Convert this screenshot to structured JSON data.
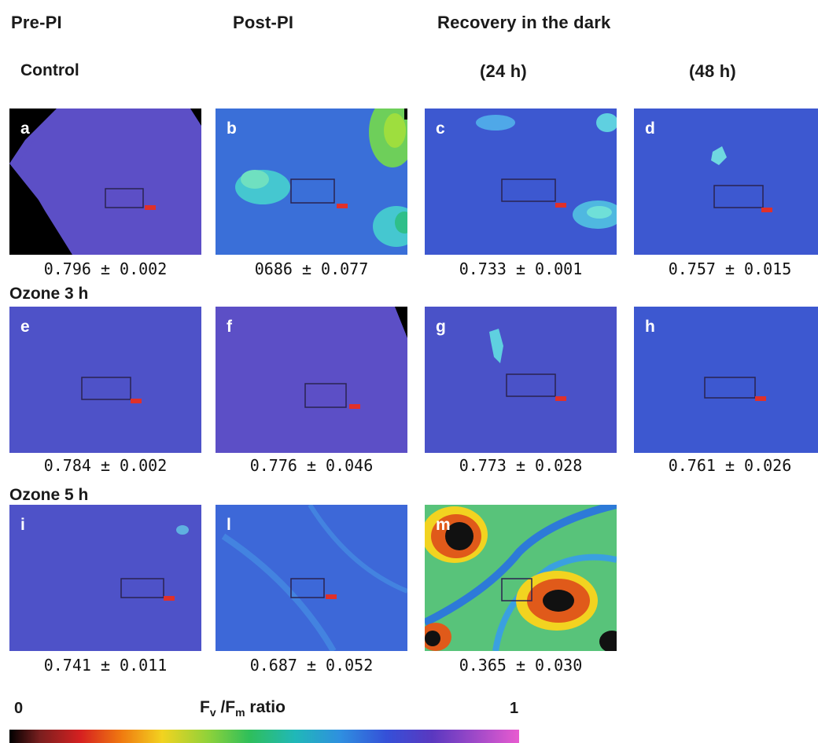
{
  "headers": {
    "pre_pi": "Pre-PI",
    "post_pi": "Post-PI",
    "recovery": "Recovery in the dark",
    "h24": "(24 h)",
    "h48": "(48 h)"
  },
  "rows": {
    "control": "Control",
    "ozone3": "Ozone 3 h",
    "ozone5": "Ozone 5 h"
  },
  "panels": {
    "a": {
      "label": "a",
      "value": "0.796 ± 0.002"
    },
    "b": {
      "label": "b",
      "value": "0686 ± 0.077"
    },
    "c": {
      "label": "c",
      "value": "0.733 ± 0.001"
    },
    "d": {
      "label": "d",
      "value": "0.757 ± 0.015"
    },
    "e": {
      "label": "e",
      "value": "0.784 ± 0.002"
    },
    "f": {
      "label": "f",
      "value": "0.776 ± 0.046"
    },
    "g": {
      "label": "g",
      "value": "0.773 ± 0.028"
    },
    "h": {
      "label": "h",
      "value": "0.761 ± 0.026"
    },
    "i": {
      "label": "i",
      "value": "0.741 ± 0.011"
    },
    "l": {
      "label": "l",
      "value": "0.687 ± 0.052"
    },
    "m": {
      "label": "m",
      "value": "0.365 ± 0.030"
    }
  },
  "colorbar": {
    "min_label": "0",
    "max_label": "1",
    "title_main": "F",
    "title_sub_v": "v",
    "title_mid": " /F",
    "title_sub_m": "m",
    "title_end": " ratio"
  },
  "colors": {
    "background_leaf": "#5b50c4",
    "roi_box": "#2a2350",
    "marker": "#e0302a"
  }
}
